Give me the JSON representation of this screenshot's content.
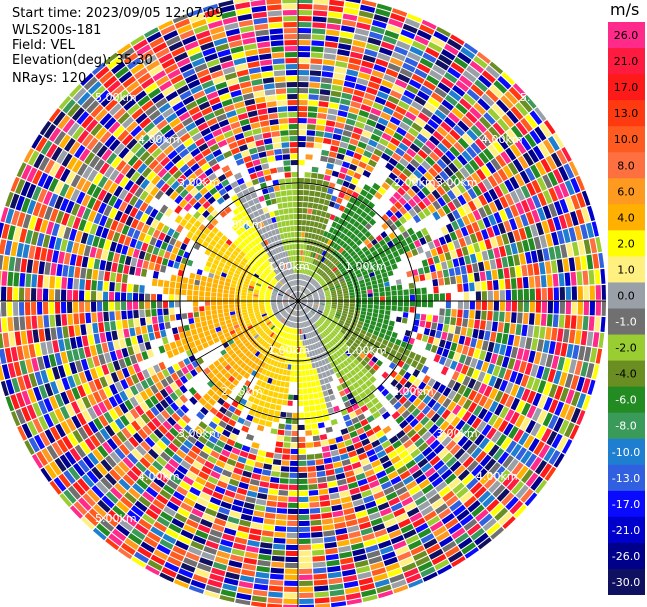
{
  "header": {
    "start_time": "Start time: 2023/09/05 12:07:09",
    "instrument": "WLS200s-181",
    "field": "Field: VEL",
    "elevation": "Elevation(deg): 35.30",
    "nrays": "NRays: 120"
  },
  "colorbar": {
    "unit": "m/s",
    "ticks": [
      "26.0",
      "21.0",
      "17.0",
      "13.0",
      "10.0",
      "8.0",
      "6.0",
      "4.0",
      "2.0",
      "1.0",
      "0.0",
      "-1.0",
      "-2.0",
      "-4.0",
      "-6.0",
      "-8.0",
      "-10.0",
      "-13.0",
      "-17.0",
      "-21.0",
      "-26.0",
      "-30.0"
    ],
    "colors": [
      "#ff2a8a",
      "#ff1a40",
      "#ff1a1a",
      "#ff3a10",
      "#ff5a20",
      "#ff7040",
      "#ff9a20",
      "#ffb000",
      "#ffff00",
      "#fff080",
      "#9aa0a8",
      "#707070",
      "#9acd32",
      "#6b8e23",
      "#228b22",
      "#3a9a5a",
      "#1e7fd0",
      "#3060e0",
      "#0a0aff",
      "#0000cd",
      "#00008b",
      "#101060"
    ],
    "text_colors": [
      "#000",
      "#000",
      "#000",
      "#000",
      "#000",
      "#000",
      "#000",
      "#000",
      "#000",
      "#000",
      "#000",
      "#fff",
      "#000",
      "#000",
      "#fff",
      "#fff",
      "#fff",
      "#fff",
      "#fff",
      "#fff",
      "#fff",
      "#fff"
    ]
  },
  "chart_data": {
    "type": "ppi",
    "field": "VEL",
    "n_rays": 120,
    "ring_labels": [
      "1.00km",
      "2.00km",
      "3.00km",
      "4.00km",
      "5.00km"
    ],
    "ring_distances_km": [
      1,
      2,
      3,
      4,
      5
    ]
  }
}
